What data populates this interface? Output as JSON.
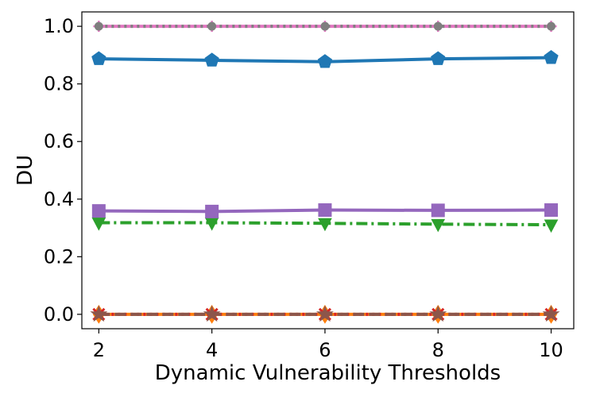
{
  "chart_data": {
    "type": "line",
    "title": "",
    "xlabel": "Dynamic Vulnerability Thresholds",
    "ylabel": "DU",
    "x": [
      2,
      4,
      6,
      8,
      10
    ],
    "xticks": [
      "2",
      "4",
      "6",
      "8",
      "10"
    ],
    "yticks": [
      "0.0",
      "0.2",
      "0.4",
      "0.6",
      "0.8",
      "1.0"
    ],
    "xlim": [
      1.7,
      10.4
    ],
    "ylim": [
      -0.05,
      1.05
    ],
    "grid": false,
    "legend": "none",
    "series": [
      {
        "color": "#1f77b4",
        "linestyle": "solid",
        "marker": "pentagon",
        "values": [
          0.887,
          0.882,
          0.877,
          0.887,
          0.891
        ]
      },
      {
        "color": "#ff7f0e",
        "linestyle": "solid",
        "marker": "diamond",
        "values": [
          0.0,
          0.0,
          0.0,
          0.0,
          0.0
        ]
      },
      {
        "color": "#2ca02c",
        "linestyle": "dashdot",
        "marker": "triangle-down",
        "values": [
          0.318,
          0.318,
          0.316,
          0.313,
          0.311
        ]
      },
      {
        "color": "#d62728",
        "linestyle": "dotted",
        "marker": "x",
        "values": [
          0.0,
          0.0,
          0.0,
          0.0,
          0.0
        ]
      },
      {
        "color": "#9467bd",
        "linestyle": "solid",
        "marker": "square",
        "values": [
          0.359,
          0.357,
          0.362,
          0.361,
          0.362
        ]
      },
      {
        "color": "#8c564b",
        "linestyle": "dashed",
        "marker": "star",
        "values": [
          0.0,
          0.0,
          0.0,
          0.0,
          0.0
        ]
      },
      {
        "color": "#e377c2",
        "linestyle": "solid",
        "marker": "plus",
        "values": [
          1.0,
          1.0,
          1.0,
          1.0,
          1.0
        ]
      },
      {
        "color": "#7f7f7f",
        "linestyle": "dotted",
        "marker": "circle",
        "values": [
          1.0,
          1.0,
          1.0,
          1.0,
          1.0
        ]
      }
    ]
  }
}
